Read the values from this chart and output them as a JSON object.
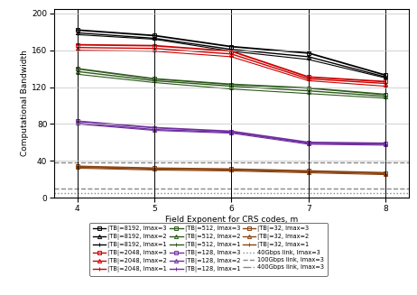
{
  "x": [
    4,
    5,
    6,
    7,
    8
  ],
  "series": [
    {
      "label": "|TB|=8192, lmax=3",
      "color": "#000000",
      "marker": "s",
      "linestyle": "-",
      "lw": 1.3,
      "values": [
        182,
        176,
        164,
        157,
        133
      ]
    },
    {
      "label": "|TB|=8192, lmax=2",
      "color": "#000000",
      "marker": "^",
      "linestyle": "-",
      "lw": 1.0,
      "values": [
        179,
        173,
        161,
        153,
        131
      ]
    },
    {
      "label": "|TB|=8192, lmax=1",
      "color": "#000000",
      "marker": "+",
      "linestyle": "-",
      "lw": 0.8,
      "values": [
        177,
        172,
        159,
        150,
        130
      ]
    },
    {
      "label": "|TB|=2048, lmax=3",
      "color": "#cc0000",
      "marker": "s",
      "linestyle": "-",
      "lw": 1.3,
      "values": [
        166,
        165,
        159,
        131,
        126
      ]
    },
    {
      "label": "|TB|=2048, lmax=2",
      "color": "#cc0000",
      "marker": "^",
      "linestyle": "-",
      "lw": 1.0,
      "values": [
        163,
        162,
        156,
        129,
        124
      ]
    },
    {
      "label": "|TB|=2048, lmax=1",
      "color": "#cc0000",
      "marker": "+",
      "linestyle": "-",
      "lw": 0.8,
      "values": [
        160,
        159,
        153,
        127,
        121
      ]
    },
    {
      "label": "|TB|=512, lmax=3",
      "color": "#2d5a1b",
      "marker": "s",
      "linestyle": "-",
      "lw": 1.3,
      "values": [
        140,
        129,
        123,
        119,
        112
      ]
    },
    {
      "label": "|TB|=512, lmax=2",
      "color": "#2d5a1b",
      "marker": "^",
      "linestyle": "-",
      "lw": 1.0,
      "values": [
        137,
        127,
        121,
        116,
        110
      ]
    },
    {
      "label": "|TB|=512, lmax=1",
      "color": "#2d5a1b",
      "marker": "+",
      "linestyle": "-",
      "lw": 0.8,
      "values": [
        134,
        125,
        118,
        113,
        108
      ]
    },
    {
      "label": "|TB|=128, lmax=3",
      "color": "#7030a0",
      "marker": "s",
      "linestyle": "-",
      "lw": 1.3,
      "values": [
        83,
        76,
        72,
        60,
        59
      ]
    },
    {
      "label": "|TB|=128, lmax=2",
      "color": "#7030a0",
      "marker": "^",
      "linestyle": "-",
      "lw": 1.0,
      "values": [
        81,
        74,
        71,
        59,
        58
      ]
    },
    {
      "label": "|TB|=128, lmax=1",
      "color": "#7030a0",
      "marker": "+",
      "linestyle": "-",
      "lw": 0.8,
      "values": [
        80,
        73,
        70,
        58,
        57
      ]
    },
    {
      "label": "|TB|=32, lmax=3",
      "color": "#8b4513",
      "marker": "s",
      "linestyle": "-",
      "lw": 1.3,
      "values": [
        34,
        32,
        31,
        29,
        27
      ]
    },
    {
      "label": "|TB|=32, lmax=2",
      "color": "#8b4513",
      "marker": "^",
      "linestyle": "-",
      "lw": 1.0,
      "values": [
        33,
        31,
        30,
        28,
        26
      ]
    },
    {
      "label": "|TB|=32, lmax=1",
      "color": "#8b4513",
      "marker": "+",
      "linestyle": "-",
      "lw": 0.8,
      "values": [
        32,
        30,
        29,
        27,
        25
      ]
    }
  ],
  "hlines": [
    {
      "y": 38,
      "color": "#888888",
      "linestyle": "--",
      "lw": 1.0,
      "label": "400Gbps link, lmax=3"
    },
    {
      "y": 10,
      "color": "#888888",
      "linestyle": "--",
      "lw": 1.0,
      "label": "100Gbps link, lmax=3"
    },
    {
      "y": 4.5,
      "color": "#888888",
      "linestyle": ":",
      "lw": 1.0,
      "label": "40Gbps link, lmax=3"
    }
  ],
  "xlabel": "Field Exponent for CRS codes, m",
  "ylabel": "Computational Bandwidth",
  "xlim": [
    3.7,
    8.3
  ],
  "ylim": [
    0,
    205
  ],
  "yticks": [
    0,
    40,
    80,
    120,
    160,
    200
  ],
  "xticks": [
    4,
    5,
    6,
    7,
    8
  ],
  "legend_order": [
    "|TB|=8192, lmax=3",
    "|TB|=8192, lmax=2",
    "|TB|=8192, lmax=1",
    "|TB|=2048, lmax=3",
    "|TB|=2048, lmax=2",
    "|TB|=2048, lmax=1",
    "|TB|=512, lmax=3",
    "|TB|=512, lmax=2",
    "|TB|=512, lmax=1",
    "|TB|=128, lmax=3",
    "|TB|=128, lmax=2",
    "|TB|=128, lmax=1",
    "|TB|=32, lmax=3",
    "|TB|=32, lmax=2",
    "|TB|=32, lmax=1",
    "40Gbps link, lmax=3",
    "100Gbps link, lmax=3",
    "400Gbps link, lmax=3"
  ]
}
